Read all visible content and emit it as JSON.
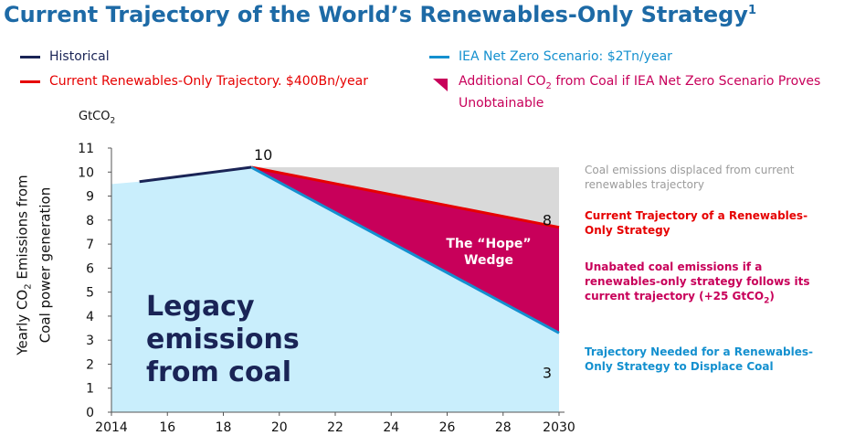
{
  "title": "Current Trajectory of the World’s Renewables-Only Strategy",
  "title_footnote": "1",
  "legend": {
    "historical": "Historical",
    "current": "Current Renewables-Only Trajectory. $400Bn/year",
    "iea": "IEA Net Zero Scenario: $2Tn/year",
    "additional_line1": "Additional CO",
    "additional_sub": "2",
    "additional_line2": " from Coal if IEA Net Zero Scenario Proves Unobtainable"
  },
  "annotations": {
    "grey": "Coal emissions displaced from current renewables trajectory",
    "red": "Current Trajectory of a Renewables-Only Strategy",
    "magenta_main": "Unabated coal emissions if a renewables-only strategy follows its current trajectory (+25 GtCO",
    "magenta_sub": "2",
    "magenta_end": ")",
    "blue": "Trajectory Needed for a Renewables-Only Strategy to Displace Coal",
    "legacy": "Legacy emissions from coal",
    "hope": "The “Hope” Wedge"
  },
  "colors": {
    "title": "#1d6aa6",
    "historical": "#1a2456",
    "current": "#e60000",
    "iea": "#1490cf",
    "wedge": "#c8005a",
    "legacy_fill": "#c9eefc",
    "displaced_fill": "#d9d9d9"
  },
  "chart_data": {
    "type": "line",
    "unit_main": "GtCO",
    "unit_sub": "2",
    "ylabel_line1_pre": "Yearly CO",
    "ylabel_line1_sub": "2",
    "ylabel_line1_post": " Emissions from",
    "ylabel_line2": "Coal power generation",
    "xlim": [
      2014,
      2030
    ],
    "ylim": [
      0,
      11
    ],
    "xticks": [
      2014,
      2016,
      2018,
      2020,
      2022,
      2024,
      2026,
      2028,
      2030
    ],
    "xtick_labels": [
      "2014",
      "16",
      "18",
      "20",
      "22",
      "24",
      "26",
      "28",
      "2030"
    ],
    "yticks": [
      0,
      1,
      2,
      3,
      4,
      5,
      6,
      7,
      8,
      9,
      10,
      11
    ],
    "series": [
      {
        "name": "Historical",
        "x": [
          2015,
          2019
        ],
        "y": [
          9.6,
          10.2
        ]
      },
      {
        "name": "Current Renewables-Only Trajectory. $400Bn/year",
        "x": [
          2019,
          2030
        ],
        "y": [
          10.2,
          7.7
        ]
      },
      {
        "name": "IEA Net Zero Scenario: $2Tn/year",
        "x": [
          2019,
          2030
        ],
        "y": [
          10.2,
          3.3
        ]
      }
    ],
    "legacy_area": {
      "x": [
        2014,
        2015,
        2019,
        2030
      ],
      "y": [
        9.5,
        9.6,
        10.2,
        3.3
      ]
    },
    "displaced_area_top": 10.2,
    "data_labels": [
      {
        "text": "10",
        "x": 2019,
        "y": 10.2
      },
      {
        "text": "8",
        "x": 2030,
        "y": 7.7
      },
      {
        "text": "3",
        "x": 2030,
        "y": 3.3
      }
    ]
  }
}
